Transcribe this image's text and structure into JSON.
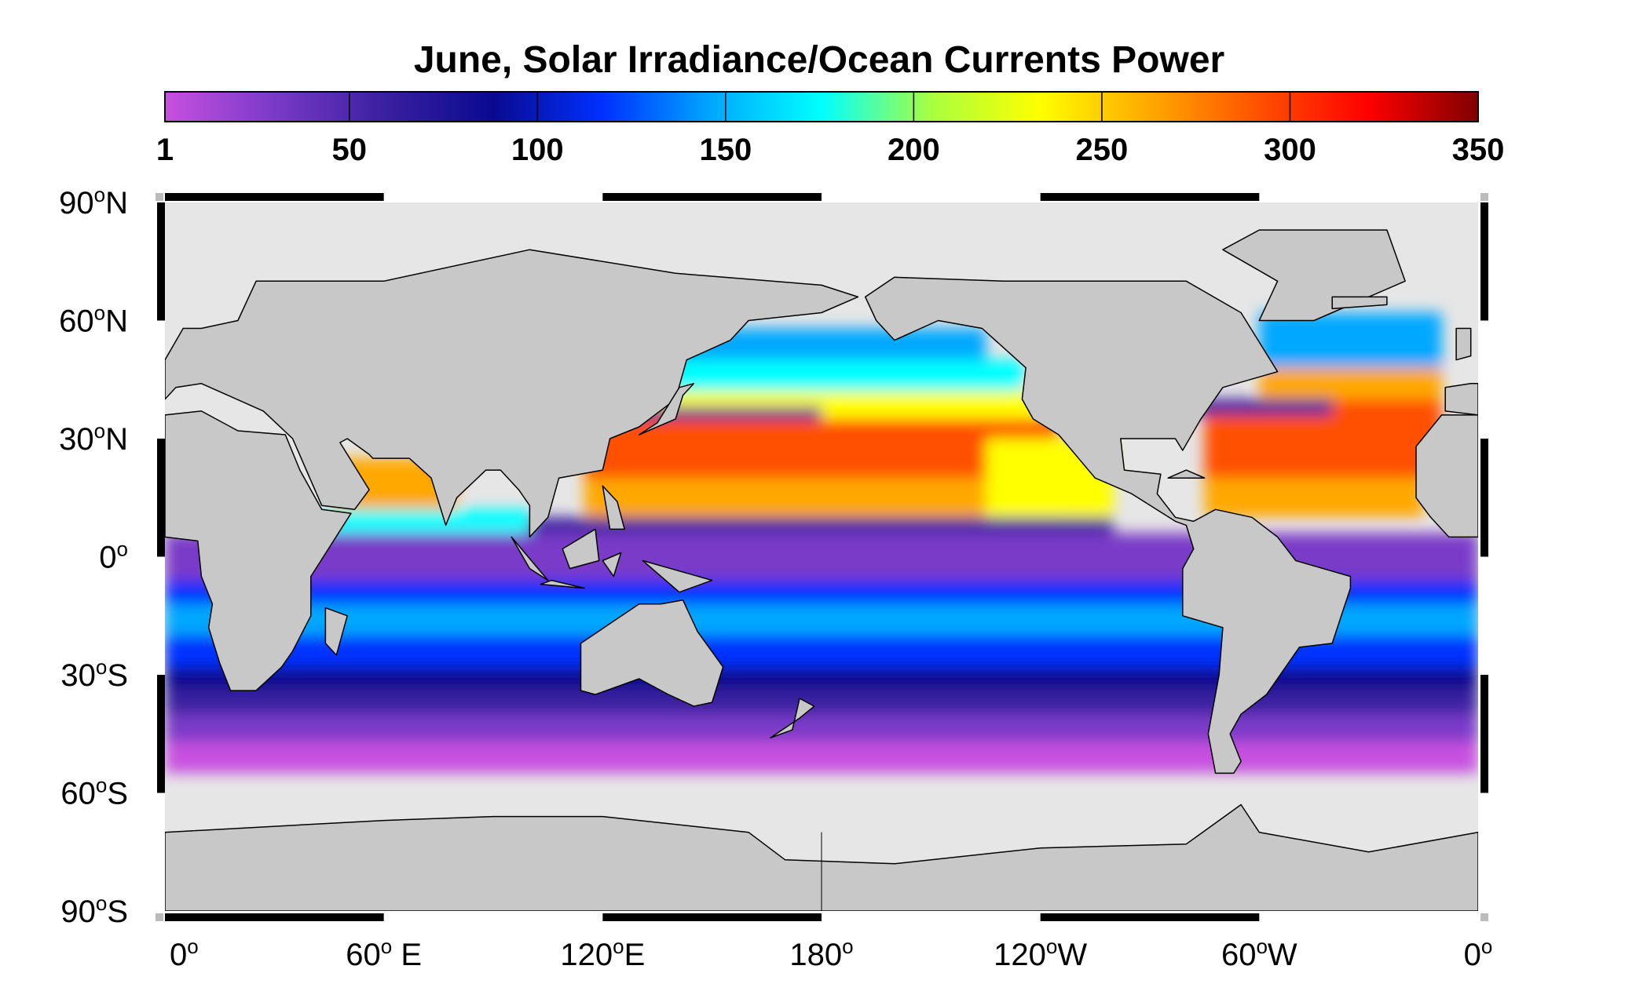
{
  "chart_data": {
    "type": "map",
    "title": "June, Solar Irradiance/Ocean Currents Power",
    "colorbar": {
      "lim": [
        1,
        350
      ],
      "ticks": [
        1,
        50,
        100,
        150,
        200,
        250,
        300,
        350
      ],
      "colormap": [
        "#c850e0",
        "#7a3ac8",
        "#3a20a0",
        "#0a0a90",
        "#0030ff",
        "#00a8ff",
        "#00ffff",
        "#a8ff40",
        "#ffff00",
        "#ffa800",
        "#ff5000",
        "#ff0000",
        "#800000"
      ]
    },
    "lat_labels": [
      [
        "90",
        "o",
        "N"
      ],
      [
        "60",
        "o",
        "N"
      ],
      [
        "30",
        "o",
        "N"
      ],
      [
        "0",
        "o"
      ],
      [
        "30",
        "o",
        "S"
      ],
      [
        "60",
        "o",
        "S"
      ],
      [
        "90",
        "o",
        "S"
      ]
    ],
    "lon_labels": [
      [
        "0",
        "o"
      ],
      [
        "60",
        "o",
        " E"
      ],
      [
        "120",
        "o",
        "E"
      ],
      [
        "180",
        "o"
      ],
      [
        "120",
        "o",
        "W"
      ],
      [
        "60",
        "o",
        "W"
      ],
      [
        "0",
        "o"
      ]
    ],
    "land_color": "#c8c8c8",
    "background_color": "#e6e6e6"
  }
}
